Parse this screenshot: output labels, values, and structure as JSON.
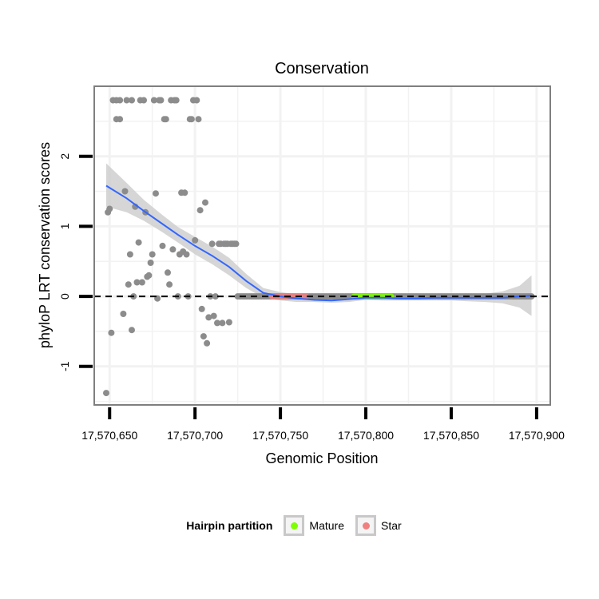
{
  "chart_data": {
    "type": "scatter",
    "title": "Conservation",
    "xlabel": "Genomic Position",
    "ylabel": "phyloP LRT conservation scores",
    "xlim": [
      17570641,
      17570908
    ],
    "ylim": [
      -1.55,
      3.0
    ],
    "x_ticks": [
      17570650,
      17570700,
      17570750,
      17570800,
      17570850,
      17570900
    ],
    "x_tick_labels": [
      "17,570,650",
      "17,570,700",
      "17,570,750",
      "17,570,800",
      "17,570,850",
      "17,570,900"
    ],
    "y_ticks": [
      -1,
      0,
      1,
      2
    ],
    "y_tick_labels": [
      "-1",
      "0",
      "1",
      "2"
    ],
    "reference_line": {
      "y": 0,
      "style": "dashed"
    },
    "points": [
      [
        17570648,
        -1.38
      ],
      [
        17570649,
        1.2
      ],
      [
        17570650,
        1.25
      ],
      [
        17570651,
        -0.52
      ],
      [
        17570652,
        2.8
      ],
      [
        17570654,
        2.8
      ],
      [
        17570654,
        2.53
      ],
      [
        17570656,
        2.53
      ],
      [
        17570656,
        2.8
      ],
      [
        17570658,
        -0.25
      ],
      [
        17570659,
        1.5
      ],
      [
        17570660,
        2.8
      ],
      [
        17570661,
        0.17
      ],
      [
        17570662,
        0.6
      ],
      [
        17570663,
        2.8
      ],
      [
        17570663,
        -0.48
      ],
      [
        17570664,
        0.0
      ],
      [
        17570665,
        1.28
      ],
      [
        17570666,
        0.2
      ],
      [
        17570667,
        0.77
      ],
      [
        17570668,
        2.8
      ],
      [
        17570669,
        0.2
      ],
      [
        17570670,
        2.8
      ],
      [
        17570671,
        1.2
      ],
      [
        17570672,
        0.28
      ],
      [
        17570673,
        0.3
      ],
      [
        17570674,
        0.48
      ],
      [
        17570675,
        0.6
      ],
      [
        17570676,
        2.8
      ],
      [
        17570677,
        1.47
      ],
      [
        17570678,
        -0.03
      ],
      [
        17570679,
        2.8
      ],
      [
        17570680,
        2.8
      ],
      [
        17570681,
        0.72
      ],
      [
        17570682,
        2.53
      ],
      [
        17570683,
        2.53
      ],
      [
        17570684,
        0.34
      ],
      [
        17570685,
        0.17
      ],
      [
        17570686,
        2.8
      ],
      [
        17570687,
        0.67
      ],
      [
        17570688,
        2.8
      ],
      [
        17570689,
        2.8
      ],
      [
        17570690,
        0.0
      ],
      [
        17570691,
        0.6
      ],
      [
        17570692,
        1.48
      ],
      [
        17570693,
        0.64
      ],
      [
        17570694,
        1.48
      ],
      [
        17570695,
        0.6
      ],
      [
        17570696,
        0.0
      ],
      [
        17570697,
        2.53
      ],
      [
        17570698,
        2.53
      ],
      [
        17570699,
        2.8
      ],
      [
        17570700,
        0.8
      ],
      [
        17570701,
        2.8
      ],
      [
        17570702,
        2.53
      ],
      [
        17570703,
        1.23
      ],
      [
        17570704,
        -0.18
      ],
      [
        17570705,
        -0.57
      ],
      [
        17570706,
        1.34
      ],
      [
        17570707,
        -0.67
      ],
      [
        17570708,
        -0.3
      ],
      [
        17570709,
        0.0
      ],
      [
        17570710,
        0.75
      ],
      [
        17570711,
        -0.28
      ],
      [
        17570712,
        0.0
      ],
      [
        17570713,
        -0.38
      ],
      [
        17570714,
        0.75
      ],
      [
        17570715,
        0.75
      ],
      [
        17570716,
        -0.38
      ],
      [
        17570717,
        0.75
      ],
      [
        17570718,
        0.75
      ],
      [
        17570719,
        0.75
      ],
      [
        17570720,
        -0.37
      ],
      [
        17570721,
        0.75
      ],
      [
        17570722,
        0.75
      ],
      [
        17570723,
        0.75
      ],
      [
        17570724,
        0.75
      ],
      [
        17570725,
        0.0
      ],
      [
        17570726,
        0.0
      ],
      [
        17570727,
        0.0
      ],
      [
        17570728,
        0.0
      ],
      [
        17570729,
        0.0
      ],
      [
        17570730,
        0.0
      ],
      [
        17570731,
        0.0
      ],
      [
        17570732,
        0.0
      ],
      [
        17570733,
        0.0
      ],
      [
        17570734,
        0.0
      ],
      [
        17570735,
        0.0
      ],
      [
        17570736,
        0.0
      ],
      [
        17570737,
        0.0
      ],
      [
        17570738,
        0.0
      ],
      [
        17570739,
        0.0
      ],
      [
        17570740,
        0.0
      ],
      [
        17570741,
        0.0
      ],
      [
        17570742,
        0.0
      ],
      [
        17570743,
        0.0
      ],
      [
        17570744,
        0.0
      ],
      [
        17570745,
        0.0
      ],
      [
        17570746,
        0.0
      ],
      [
        17570747,
        0.0
      ],
      [
        17570748,
        0.0
      ],
      [
        17570749,
        0.0
      ],
      [
        17570750,
        0.0
      ],
      [
        17570751,
        0.0
      ],
      [
        17570752,
        0.0
      ],
      [
        17570753,
        0.0
      ],
      [
        17570754,
        0.0
      ],
      [
        17570755,
        0.0
      ],
      [
        17570756,
        0.0
      ],
      [
        17570757,
        0.0
      ],
      [
        17570758,
        0.0
      ],
      [
        17570759,
        0.0
      ],
      [
        17570760,
        0.0
      ],
      [
        17570761,
        0.0
      ],
      [
        17570762,
        0.0
      ],
      [
        17570763,
        0.0
      ],
      [
        17570764,
        0.0
      ],
      [
        17570765,
        0.0
      ],
      [
        17570766,
        0.0
      ],
      [
        17570767,
        0.0
      ],
      [
        17570768,
        0.0
      ],
      [
        17570769,
        0.0
      ],
      [
        17570770,
        0.0
      ],
      [
        17570771,
        0.0
      ],
      [
        17570772,
        0.0
      ],
      [
        17570773,
        0.0
      ],
      [
        17570774,
        0.0
      ],
      [
        17570775,
        0.0
      ],
      [
        17570776,
        0.0
      ],
      [
        17570777,
        0.0
      ],
      [
        17570778,
        0.0
      ],
      [
        17570779,
        0.0
      ],
      [
        17570780,
        0.0
      ],
      [
        17570781,
        0.0
      ],
      [
        17570782,
        0.0
      ],
      [
        17570783,
        0.0
      ],
      [
        17570784,
        0.0
      ],
      [
        17570785,
        0.0
      ],
      [
        17570786,
        0.0
      ],
      [
        17570787,
        0.0
      ],
      [
        17570788,
        0.0
      ],
      [
        17570789,
        0.0
      ],
      [
        17570790,
        0.0
      ],
      [
        17570791,
        0.0
      ],
      [
        17570792,
        0.0
      ],
      [
        17570793,
        0.0
      ],
      [
        17570794,
        0.0
      ],
      [
        17570795,
        0.0
      ],
      [
        17570796,
        0.0
      ],
      [
        17570797,
        0.0
      ],
      [
        17570798,
        0.0
      ],
      [
        17570799,
        0.0
      ],
      [
        17570800,
        0.0
      ],
      [
        17570801,
        0.0
      ],
      [
        17570802,
        0.0
      ],
      [
        17570803,
        0.0
      ],
      [
        17570804,
        0.0
      ],
      [
        17570805,
        0.0
      ],
      [
        17570806,
        0.0
      ],
      [
        17570807,
        0.0
      ],
      [
        17570808,
        0.0
      ],
      [
        17570809,
        0.0
      ],
      [
        17570810,
        0.0
      ],
      [
        17570811,
        0.0
      ],
      [
        17570812,
        0.0
      ],
      [
        17570813,
        0.0
      ],
      [
        17570814,
        0.0
      ],
      [
        17570815,
        0.0
      ],
      [
        17570816,
        0.0
      ],
      [
        17570817,
        0.0
      ],
      [
        17570818,
        0.0
      ],
      [
        17570819,
        0.0
      ],
      [
        17570820,
        0.0
      ],
      [
        17570821,
        0.0
      ],
      [
        17570822,
        0.0
      ],
      [
        17570823,
        0.0
      ],
      [
        17570824,
        0.0
      ],
      [
        17570825,
        0.0
      ],
      [
        17570826,
        0.0
      ],
      [
        17570827,
        0.0
      ],
      [
        17570828,
        0.0
      ],
      [
        17570829,
        0.0
      ],
      [
        17570830,
        0.0
      ],
      [
        17570831,
        0.0
      ],
      [
        17570832,
        0.0
      ],
      [
        17570833,
        0.0
      ],
      [
        17570834,
        0.0
      ],
      [
        17570835,
        0.0
      ],
      [
        17570836,
        0.0
      ],
      [
        17570837,
        0.0
      ],
      [
        17570838,
        0.0
      ],
      [
        17570839,
        0.0
      ],
      [
        17570840,
        0.0
      ],
      [
        17570841,
        0.0
      ],
      [
        17570842,
        0.0
      ],
      [
        17570843,
        0.0
      ],
      [
        17570844,
        0.0
      ],
      [
        17570845,
        0.0
      ],
      [
        17570846,
        0.0
      ],
      [
        17570847,
        0.0
      ],
      [
        17570848,
        0.0
      ],
      [
        17570849,
        0.0
      ],
      [
        17570850,
        0.0
      ],
      [
        17570851,
        0.0
      ],
      [
        17570852,
        0.0
      ],
      [
        17570853,
        0.0
      ],
      [
        17570854,
        0.0
      ],
      [
        17570855,
        0.0
      ],
      [
        17570856,
        0.0
      ],
      [
        17570857,
        0.0
      ],
      [
        17570858,
        0.0
      ],
      [
        17570859,
        0.0
      ],
      [
        17570860,
        0.0
      ],
      [
        17570861,
        0.0
      ],
      [
        17570862,
        0.0
      ],
      [
        17570863,
        0.0
      ],
      [
        17570864,
        0.0
      ],
      [
        17570865,
        0.0
      ],
      [
        17570866,
        0.0
      ],
      [
        17570867,
        0.0
      ],
      [
        17570868,
        0.0
      ],
      [
        17570869,
        0.0
      ],
      [
        17570870,
        0.0
      ],
      [
        17570871,
        0.0
      ],
      [
        17570872,
        0.0
      ],
      [
        17570873,
        0.0
      ],
      [
        17570874,
        0.0
      ],
      [
        17570875,
        0.0
      ],
      [
        17570876,
        0.0
      ],
      [
        17570877,
        0.0
      ],
      [
        17570878,
        0.0
      ],
      [
        17570879,
        0.0
      ],
      [
        17570880,
        0.0
      ],
      [
        17570881,
        0.0
      ],
      [
        17570882,
        0.0
      ],
      [
        17570883,
        0.0
      ],
      [
        17570884,
        0.0
      ],
      [
        17570885,
        0.0
      ],
      [
        17570886,
        0.0
      ],
      [
        17570887,
        0.0
      ],
      [
        17570888,
        0.0
      ],
      [
        17570889,
        0.0
      ],
      [
        17570890,
        0.0
      ],
      [
        17570891,
        0.0
      ],
      [
        17570892,
        0.0
      ],
      [
        17570893,
        0.0
      ],
      [
        17570894,
        0.0
      ],
      [
        17570895,
        0.0
      ],
      [
        17570896,
        0.0
      ],
      [
        17570897,
        0.0
      ]
    ],
    "partitions": [
      {
        "name": "Star",
        "x_range": [
          17570745,
          17570765
        ],
        "color": "#f08080"
      },
      {
        "name": "Mature",
        "x_range": [
          17570793,
          17570815
        ],
        "color": "#7fff00"
      }
    ],
    "smooth": {
      "name": "loess",
      "color": "#3366ff",
      "x": [
        17570648,
        17570660,
        17570670,
        17570680,
        17570690,
        17570700,
        17570710,
        17570720,
        17570730,
        17570740,
        17570750,
        17570760,
        17570770,
        17570780,
        17570790,
        17570800,
        17570810,
        17570820,
        17570830,
        17570840,
        17570850,
        17570860,
        17570870,
        17570880,
        17570890,
        17570897
      ],
      "y": [
        1.58,
        1.4,
        1.22,
        1.05,
        0.88,
        0.72,
        0.58,
        0.42,
        0.22,
        0.05,
        0.0,
        -0.03,
        -0.05,
        -0.06,
        -0.04,
        -0.02,
        -0.02,
        -0.03,
        -0.03,
        -0.02,
        -0.02,
        -0.02,
        -0.02,
        -0.02,
        0.0,
        0.01
      ],
      "ci_low": [
        1.28,
        1.2,
        1.08,
        0.93,
        0.77,
        0.6,
        0.46,
        0.3,
        0.12,
        -0.02,
        -0.06,
        -0.08,
        -0.08,
        -0.09,
        -0.08,
        -0.05,
        -0.06,
        -0.06,
        -0.06,
        -0.06,
        -0.06,
        -0.07,
        -0.08,
        -0.1,
        -0.16,
        -0.28
      ],
      "ci_high": [
        1.9,
        1.62,
        1.38,
        1.18,
        0.99,
        0.85,
        0.71,
        0.55,
        0.32,
        0.12,
        0.06,
        0.03,
        0.0,
        -0.02,
        0.0,
        0.02,
        0.03,
        0.01,
        0.0,
        0.02,
        0.02,
        0.03,
        0.04,
        0.07,
        0.15,
        0.3
      ]
    },
    "legend": {
      "title": "Hairpin partition",
      "entries": [
        {
          "label": "Mature",
          "color": "#7fff00"
        },
        {
          "label": "Star",
          "color": "#f08080"
        }
      ],
      "position": "bottom"
    },
    "colors": {
      "points": "#8c8c8c",
      "panel_border": "#7f7f7f",
      "grid": "#f2f2f2",
      "ribbon": "#cccccc"
    }
  }
}
